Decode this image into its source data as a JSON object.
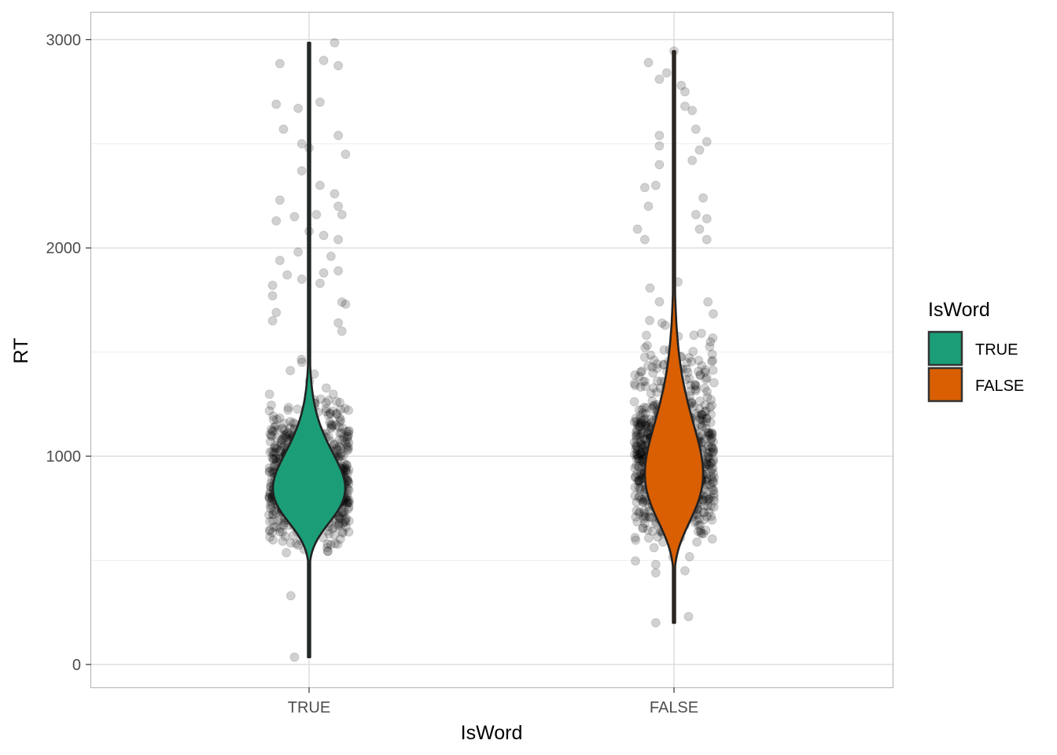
{
  "chart_data": {
    "type": "violin",
    "xlabel": "IsWord",
    "ylabel": "RT",
    "categories": [
      "TRUE",
      "FALSE"
    ],
    "ylim": [
      -110,
      3130
    ],
    "yticks": [
      0,
      1000,
      2000,
      3000
    ],
    "grid": true,
    "legend": {
      "title": "IsWord",
      "position": "right",
      "entries": [
        {
          "label": "TRUE",
          "color": "#1b9e77"
        },
        {
          "label": "FALSE",
          "color": "#d95f02"
        }
      ]
    },
    "series": [
      {
        "category": "TRUE",
        "color": "#1b9e77",
        "min": 35,
        "max": 2985,
        "fill_range": [
          540,
          1620
        ],
        "mode": 860,
        "median": 880,
        "jitter_points_note_count": 1100
      },
      {
        "category": "FALSE",
        "color": "#d95f02",
        "min": 200,
        "max": 2945,
        "fill_range": [
          500,
          1900
        ],
        "mode": 940,
        "median": 980,
        "jitter_points_note_count": 1100
      }
    ],
    "outlier_points": [
      {
        "category": "TRUE",
        "x_offset": -0.09,
        "y": 2690
      },
      {
        "category": "TRUE",
        "x_offset": -0.08,
        "y": 2885
      },
      {
        "category": "TRUE",
        "x_offset": -0.07,
        "y": 2570
      },
      {
        "category": "TRUE",
        "x_offset": -0.03,
        "y": 2670
      },
      {
        "category": "TRUE",
        "x_offset": 0.04,
        "y": 2900
      },
      {
        "category": "TRUE",
        "x_offset": 0.07,
        "y": 2985
      },
      {
        "category": "TRUE",
        "x_offset": 0.08,
        "y": 2875
      },
      {
        "category": "TRUE",
        "x_offset": 0.03,
        "y": 2700
      },
      {
        "category": "TRUE",
        "x_offset": 0.08,
        "y": 2540
      },
      {
        "category": "TRUE",
        "x_offset": 0.1,
        "y": 2450
      },
      {
        "category": "TRUE",
        "x_offset": -0.02,
        "y": 2500
      },
      {
        "category": "TRUE",
        "x_offset": 0.0,
        "y": 2480
      },
      {
        "category": "TRUE",
        "x_offset": -0.02,
        "y": 2370
      },
      {
        "category": "TRUE",
        "x_offset": 0.03,
        "y": 2300
      },
      {
        "category": "TRUE",
        "x_offset": 0.07,
        "y": 2260
      },
      {
        "category": "TRUE",
        "x_offset": -0.08,
        "y": 2230
      },
      {
        "category": "TRUE",
        "x_offset": 0.08,
        "y": 2200
      },
      {
        "category": "TRUE",
        "x_offset": 0.09,
        "y": 2160
      },
      {
        "category": "TRUE",
        "x_offset": -0.09,
        "y": 2130
      },
      {
        "category": "TRUE",
        "x_offset": -0.04,
        "y": 2150
      },
      {
        "category": "TRUE",
        "x_offset": 0.02,
        "y": 2160
      },
      {
        "category": "TRUE",
        "x_offset": 0.0,
        "y": 2080
      },
      {
        "category": "TRUE",
        "x_offset": 0.04,
        "y": 2060
      },
      {
        "category": "TRUE",
        "x_offset": 0.08,
        "y": 2040
      },
      {
        "category": "TRUE",
        "x_offset": -0.03,
        "y": 1980
      },
      {
        "category": "TRUE",
        "x_offset": -0.08,
        "y": 1940
      },
      {
        "category": "TRUE",
        "x_offset": 0.06,
        "y": 1960
      },
      {
        "category": "TRUE",
        "x_offset": 0.08,
        "y": 1890
      },
      {
        "category": "TRUE",
        "x_offset": -0.1,
        "y": 1820
      },
      {
        "category": "TRUE",
        "x_offset": -0.06,
        "y": 1870
      },
      {
        "category": "TRUE",
        "x_offset": -0.02,
        "y": 1850
      },
      {
        "category": "TRUE",
        "x_offset": 0.03,
        "y": 1830
      },
      {
        "category": "TRUE",
        "x_offset": 0.04,
        "y": 1880
      },
      {
        "category": "TRUE",
        "x_offset": -0.1,
        "y": 1770
      },
      {
        "category": "TRUE",
        "x_offset": 0.1,
        "y": 1730
      },
      {
        "category": "TRUE",
        "x_offset": 0.09,
        "y": 1740
      },
      {
        "category": "TRUE",
        "x_offset": -0.09,
        "y": 1690
      },
      {
        "category": "TRUE",
        "x_offset": 0.08,
        "y": 1640
      },
      {
        "category": "TRUE",
        "x_offset": -0.1,
        "y": 1650
      },
      {
        "category": "TRUE",
        "x_offset": 0.09,
        "y": 1600
      },
      {
        "category": "TRUE",
        "x_offset": -0.05,
        "y": 330
      },
      {
        "category": "TRUE",
        "x_offset": -0.04,
        "y": 35
      },
      {
        "category": "FALSE",
        "x_offset": -0.07,
        "y": 2890
      },
      {
        "category": "FALSE",
        "x_offset": -0.04,
        "y": 2810
      },
      {
        "category": "FALSE",
        "x_offset": -0.02,
        "y": 2840
      },
      {
        "category": "FALSE",
        "x_offset": 0.0,
        "y": 2945
      },
      {
        "category": "FALSE",
        "x_offset": 0.02,
        "y": 2780
      },
      {
        "category": "FALSE",
        "x_offset": 0.03,
        "y": 2750
      },
      {
        "category": "FALSE",
        "x_offset": 0.03,
        "y": 2680
      },
      {
        "category": "FALSE",
        "x_offset": 0.05,
        "y": 2660
      },
      {
        "category": "FALSE",
        "x_offset": 0.06,
        "y": 2570
      },
      {
        "category": "FALSE",
        "x_offset": 0.09,
        "y": 2510
      },
      {
        "category": "FALSE",
        "x_offset": -0.04,
        "y": 2540
      },
      {
        "category": "FALSE",
        "x_offset": 0.07,
        "y": 2470
      },
      {
        "category": "FALSE",
        "x_offset": -0.04,
        "y": 2490
      },
      {
        "category": "FALSE",
        "x_offset": -0.04,
        "y": 2400
      },
      {
        "category": "FALSE",
        "x_offset": 0.05,
        "y": 2420
      },
      {
        "category": "FALSE",
        "x_offset": -0.08,
        "y": 2290
      },
      {
        "category": "FALSE",
        "x_offset": -0.05,
        "y": 2300
      },
      {
        "category": "FALSE",
        "x_offset": 0.08,
        "y": 2240
      },
      {
        "category": "FALSE",
        "x_offset": -0.07,
        "y": 2200
      },
      {
        "category": "FALSE",
        "x_offset": 0.06,
        "y": 2160
      },
      {
        "category": "FALSE",
        "x_offset": 0.09,
        "y": 2140
      },
      {
        "category": "FALSE",
        "x_offset": 0.07,
        "y": 2090
      },
      {
        "category": "FALSE",
        "x_offset": -0.1,
        "y": 2090
      },
      {
        "category": "FALSE",
        "x_offset": -0.08,
        "y": 2040
      },
      {
        "category": "FALSE",
        "x_offset": 0.09,
        "y": 2040
      },
      {
        "category": "FALSE",
        "x_offset": -0.05,
        "y": 480
      },
      {
        "category": "FALSE",
        "x_offset": -0.05,
        "y": 440
      },
      {
        "category": "FALSE",
        "x_offset": 0.03,
        "y": 450
      },
      {
        "category": "FALSE",
        "x_offset": -0.05,
        "y": 200
      },
      {
        "category": "FALSE",
        "x_offset": 0.04,
        "y": 230
      }
    ]
  }
}
